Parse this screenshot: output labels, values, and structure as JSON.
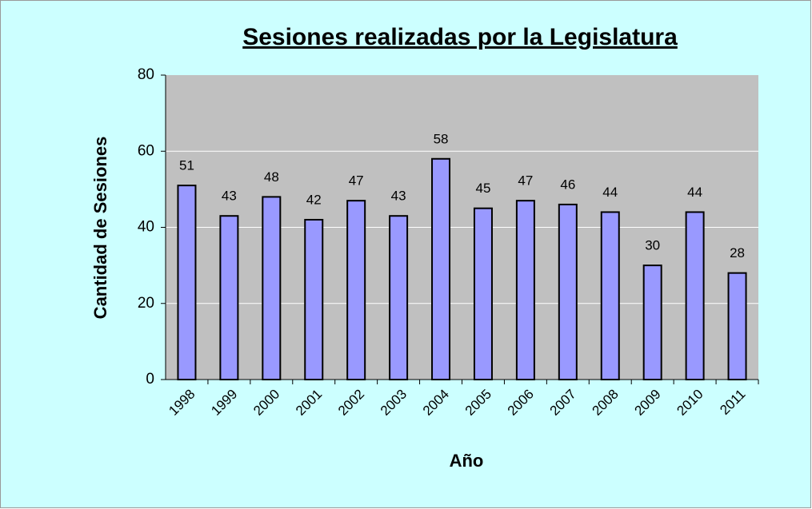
{
  "chart_data": {
    "type": "bar",
    "title": "Sesiones realizadas por la Legislatura",
    "x_label": "Año",
    "y_label": "Cantidad de Sesiones",
    "categories": [
      "1998",
      "1999",
      "2000",
      "2001",
      "2002",
      "2003",
      "2004",
      "2005",
      "2006",
      "2007",
      "2008",
      "2009",
      "2010",
      "2011"
    ],
    "values": [
      51,
      43,
      48,
      42,
      47,
      43,
      58,
      45,
      47,
      46,
      44,
      30,
      44,
      28
    ],
    "color": "#9999ff",
    "ylim": [
      0,
      80
    ],
    "yticks": [
      0,
      20,
      40,
      60,
      80
    ],
    "grid": true
  }
}
